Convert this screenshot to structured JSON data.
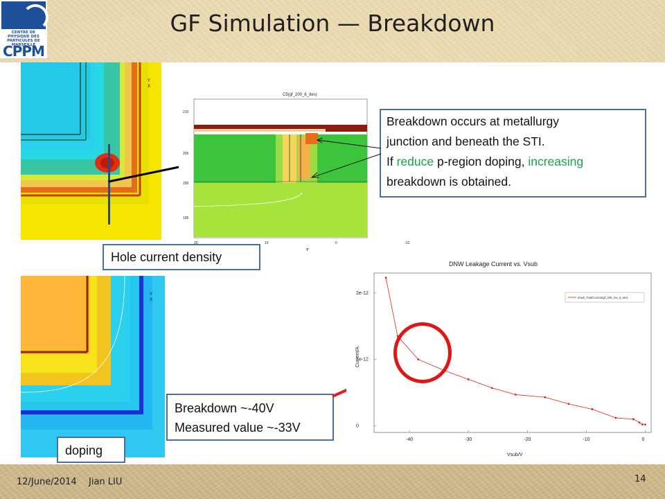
{
  "slide": {
    "title": "GF Simulation — Breakdown",
    "footer": {
      "date": "12/June/2014",
      "author": "Jian LIU",
      "page": "14"
    }
  },
  "logo": {
    "text": "CPPM",
    "small_text": "CENTRE DE PHYSIQUE DES\nPARTICULES DE MARSEILLE"
  },
  "labels": {
    "hole_current": "Hole current density",
    "doping": "doping"
  },
  "callout_breakdown": {
    "line1": "Breakdown occurs at metallurgy",
    "line2": "junction and beneath the STI.",
    "line3_a": "If ",
    "line3_b": "reduce",
    "line3_c": " p-region doping, ",
    "line3_d": "increasing",
    "line4": "breakdown is obtained."
  },
  "callout_values": {
    "line1": "Breakdown ~-40V",
    "line2": "Measured value ~-33V"
  },
  "sim_top_left": {
    "name": "",
    "axis": "Y\nX",
    "axis_y": "Y",
    "axis_x": "X"
  },
  "cut_plot": {
    "title": "C5(gf_200_6_des)",
    "y_ticks": [
      "210",
      "205",
      "200",
      "195"
    ],
    "x_ticks": [
      "20",
      "10",
      "0",
      "-10"
    ],
    "xlabel": "Y"
  },
  "colors": {
    "accent_green": "#16a34a",
    "callout_border": "#4a6fa5",
    "arrow_red": "#e02020",
    "circle_red": "#e01515"
  },
  "chart_data": {
    "type": "line",
    "title": "DNW Leakage Current vs. Vsub",
    "xlabel": "Vsub/V",
    "ylabel": "Current/A",
    "xlim": [
      -46,
      1
    ],
    "ylim": [
      -1e-13,
      2.3e-12
    ],
    "x_ticks": [
      "-40",
      "-30",
      "-20",
      "-10",
      "0"
    ],
    "y_ticks": [
      "2e-12",
      "1e-12",
      "0"
    ],
    "legend": "dnw0_TotalCurrent(gf_200_res_6_des)",
    "legend_position": "top-right",
    "series": [
      {
        "name": "dnw0_TotalCurrent(gf_200_res_6_des)",
        "x": [
          -44,
          -42,
          -38.5,
          -34,
          -30,
          -26,
          -22,
          -17,
          -13,
          -9,
          -5,
          -2,
          -1,
          -0.5,
          0
        ],
        "y": [
          2.23e-12,
          1.35e-12,
          1e-12,
          8.3e-13,
          7e-13,
          5.7e-13,
          4.7e-13,
          4.3e-13,
          3.3e-13,
          2.5e-13,
          1.2e-13,
          1e-13,
          5e-14,
          2e-14,
          2e-14
        ]
      }
    ]
  }
}
